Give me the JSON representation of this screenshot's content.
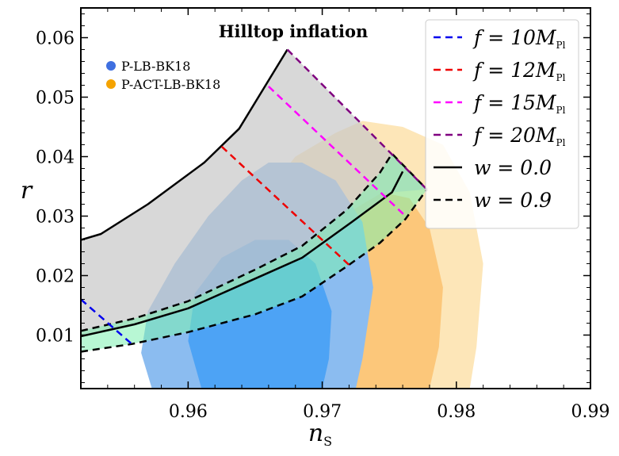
{
  "chart_data": {
    "type": "line",
    "title": "Hilltop inflation",
    "xlabel": "n",
    "xlabel_sub": "S",
    "ylabel": "r",
    "xlim": [
      0.952,
      0.99
    ],
    "ylim": [
      0.001,
      0.065
    ],
    "xticks": [
      0.96,
      0.97,
      0.98,
      0.99
    ],
    "xtick_labels": [
      "0.96",
      "0.97",
      "0.98",
      "0.99"
    ],
    "yticks": [
      0.01,
      0.02,
      0.03,
      0.04,
      0.05,
      0.06
    ],
    "ytick_labels": [
      "0.01",
      "0.02",
      "0.03",
      "0.04",
      "0.05",
      "0.06"
    ],
    "contours": [
      {
        "name": "P-ACT-LB-BK18",
        "level": "95%",
        "color": "#fde6b8",
        "points": [
          [
            0.9655,
            0.001
          ],
          [
            0.9645,
            0.012
          ],
          [
            0.964,
            0.023
          ],
          [
            0.9655,
            0.033
          ],
          [
            0.968,
            0.04
          ],
          [
            0.971,
            0.044
          ],
          [
            0.973,
            0.046
          ],
          [
            0.976,
            0.045
          ],
          [
            0.979,
            0.042
          ],
          [
            0.981,
            0.034
          ],
          [
            0.982,
            0.022
          ],
          [
            0.9815,
            0.008
          ],
          [
            0.981,
            0.001
          ]
        ]
      },
      {
        "name": "P-ACT-LB-BK18",
        "level": "68%",
        "color": "#fcc77a",
        "points": [
          [
            0.968,
            0.001
          ],
          [
            0.9675,
            0.012
          ],
          [
            0.969,
            0.022
          ],
          [
            0.9715,
            0.03
          ],
          [
            0.9745,
            0.034
          ],
          [
            0.9765,
            0.033
          ],
          [
            0.978,
            0.028
          ],
          [
            0.979,
            0.018
          ],
          [
            0.9787,
            0.008
          ],
          [
            0.978,
            0.001
          ]
        ]
      },
      {
        "name": "P-LB-BK18",
        "level": "95%",
        "color": "#8bbcf0",
        "points": [
          [
            0.9573,
            0.001
          ],
          [
            0.9565,
            0.007
          ],
          [
            0.957,
            0.014
          ],
          [
            0.959,
            0.022
          ],
          [
            0.9615,
            0.03
          ],
          [
            0.964,
            0.036
          ],
          [
            0.966,
            0.039
          ],
          [
            0.9685,
            0.039
          ],
          [
            0.971,
            0.036
          ],
          [
            0.973,
            0.029
          ],
          [
            0.9738,
            0.018
          ],
          [
            0.973,
            0.006
          ],
          [
            0.9725,
            0.001
          ]
        ]
      },
      {
        "name": "P-LB-BK18",
        "level": "68%",
        "color": "#4da3f5",
        "points": [
          [
            0.961,
            0.001
          ],
          [
            0.96,
            0.009
          ],
          [
            0.9605,
            0.017
          ],
          [
            0.9625,
            0.023
          ],
          [
            0.965,
            0.026
          ],
          [
            0.9675,
            0.026
          ],
          [
            0.9695,
            0.022
          ],
          [
            0.9707,
            0.014
          ],
          [
            0.9705,
            0.006
          ],
          [
            0.97,
            0.001
          ]
        ]
      }
    ],
    "regions": [
      {
        "name": "grey-band",
        "color": "#c8c8c8",
        "opacity": 0.7,
        "upper": [
          [
            0.952,
            0.026
          ],
          [
            0.9535,
            0.027
          ],
          [
            0.957,
            0.032
          ],
          [
            0.9612,
            0.039
          ],
          [
            0.9638,
            0.045
          ],
          [
            0.9674,
            0.058
          ]
        ],
        "upper_right": [
          [
            0.9674,
            0.058
          ],
          [
            0.9778,
            0.0345
          ]
        ],
        "lower": [
          [
            0.952,
            0.0098
          ],
          [
            0.956,
            0.0118
          ],
          [
            0.96,
            0.0145
          ],
          [
            0.965,
            0.0195
          ],
          [
            0.9685,
            0.023
          ],
          [
            0.9722,
            0.029
          ],
          [
            0.9752,
            0.034
          ],
          [
            0.9778,
            0.0345
          ]
        ]
      },
      {
        "name": "green-band",
        "color": "#7df0b0",
        "opacity": 0.55
      }
    ],
    "series": [
      {
        "name": "w=0.0",
        "style": "solid",
        "color": "#000000",
        "points": [
          [
            0.952,
            0.026
          ],
          [
            0.9535,
            0.027
          ],
          [
            0.957,
            0.032
          ],
          [
            0.9612,
            0.039
          ],
          [
            0.9638,
            0.0447
          ],
          [
            0.9674,
            0.058
          ]
        ]
      },
      {
        "name": "w=0.0",
        "style": "solid",
        "color": "#000000",
        "points": [
          [
            0.952,
            0.0098
          ],
          [
            0.956,
            0.0118
          ],
          [
            0.96,
            0.0145
          ],
          [
            0.965,
            0.0195
          ],
          [
            0.9685,
            0.023
          ],
          [
            0.9722,
            0.029
          ],
          [
            0.9752,
            0.034
          ],
          [
            0.976,
            0.0375
          ]
        ]
      },
      {
        "name": "w=0.9 upper",
        "style": "dashed",
        "color": "#000000",
        "points": [
          [
            0.952,
            0.0107
          ],
          [
            0.956,
            0.0128
          ],
          [
            0.96,
            0.0157
          ],
          [
            0.965,
            0.021
          ],
          [
            0.9685,
            0.025
          ],
          [
            0.9718,
            0.031
          ],
          [
            0.9743,
            0.0373
          ],
          [
            0.9752,
            0.0405
          ],
          [
            0.9778,
            0.0345
          ]
        ]
      },
      {
        "name": "w=0.9 lower",
        "style": "dashed",
        "color": "#000000",
        "points": [
          [
            0.952,
            0.0072
          ],
          [
            0.9558,
            0.0085
          ],
          [
            0.96,
            0.0105
          ],
          [
            0.965,
            0.0135
          ],
          [
            0.9685,
            0.0165
          ],
          [
            0.9718,
            0.0215
          ],
          [
            0.9743,
            0.0255
          ],
          [
            0.9762,
            0.0295
          ],
          [
            0.9778,
            0.0345
          ]
        ]
      },
      {
        "name": "f=10M_Pl",
        "style": "dashed",
        "color": "#0000ee",
        "points": [
          [
            0.952,
            0.016
          ],
          [
            0.9558,
            0.0085
          ]
        ]
      },
      {
        "name": "f=12M_Pl",
        "style": "dashed",
        "color": "#ee0000",
        "points": [
          [
            0.9625,
            0.0417
          ],
          [
            0.972,
            0.0218
          ]
        ]
      },
      {
        "name": "f=15M_Pl",
        "style": "dashed",
        "color": "#ff00ff",
        "points": [
          [
            0.966,
            0.0518
          ],
          [
            0.9763,
            0.0298
          ]
        ]
      },
      {
        "name": "f=20M_Pl",
        "style": "dashed",
        "color": "#800080",
        "points": [
          [
            0.9674,
            0.058
          ],
          [
            0.9778,
            0.0345
          ]
        ]
      }
    ],
    "legend": {
      "placement": "top-right",
      "entries": [
        {
          "label": "f = 10M",
          "sub": "Pl",
          "color": "#0000ee",
          "style": "dashed"
        },
        {
          "label": "f = 12M",
          "sub": "Pl",
          "color": "#ee0000",
          "style": "dashed"
        },
        {
          "label": "f = 15M",
          "sub": "Pl",
          "color": "#ff00ff",
          "style": "dashed"
        },
        {
          "label": "f = 20M",
          "sub": "Pl",
          "color": "#800080",
          "style": "dashed"
        },
        {
          "label": "w = 0.0",
          "sub": "",
          "color": "#000000",
          "style": "solid"
        },
        {
          "label": "w = 0.9",
          "sub": "",
          "color": "#000000",
          "style": "dashed"
        }
      ]
    },
    "dataset_legend": [
      {
        "label": "P-LB-BK18",
        "color": "#3f6fe0"
      },
      {
        "label": "P-ACT-LB-BK18",
        "color": "#f5a300"
      }
    ]
  }
}
